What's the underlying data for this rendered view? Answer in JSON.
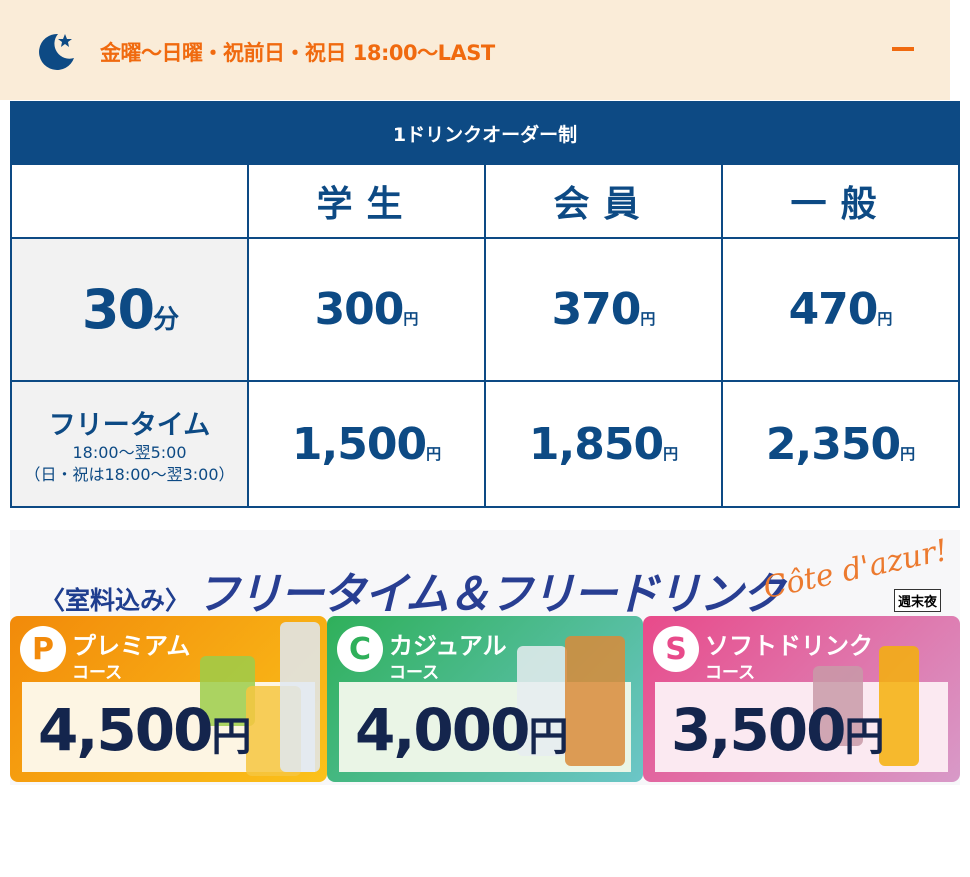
{
  "header": {
    "title": "金曜〜日曜・祝前日・祝日 18:00〜LAST",
    "icon": "moon-star-icon",
    "accent": "#f06a0f"
  },
  "table": {
    "caption": "1ドリンクオーダー制",
    "columns": [
      "学生",
      "会員",
      "一般"
    ],
    "rows": [
      {
        "label": "30分",
        "prices": [
          "300",
          "370",
          "470"
        ]
      },
      {
        "label": "フリータイム",
        "sub1": "18:00〜翌5:00",
        "sub2": "（日・祝は18:00〜翌3:00）",
        "prices": [
          "1,500",
          "1,850",
          "2,350"
        ]
      }
    ],
    "yen": "円",
    "color": "#0d4a84"
  },
  "banner": {
    "prefix": "〈室料込み〉",
    "title": "フリータイム＆フリードリンク",
    "script": "Côte d'azur!",
    "tag": "週末夜",
    "courses": [
      {
        "badge": "P",
        "name": "プレミアム",
        "course": "コース",
        "price": "4,500",
        "yen": "円"
      },
      {
        "badge": "C",
        "name": "カジュアル",
        "course": "コース",
        "price": "4,000",
        "yen": "円"
      },
      {
        "badge": "S",
        "name": "ソフトドリンク",
        "course": "コース",
        "price": "3,500",
        "yen": "円"
      }
    ]
  }
}
